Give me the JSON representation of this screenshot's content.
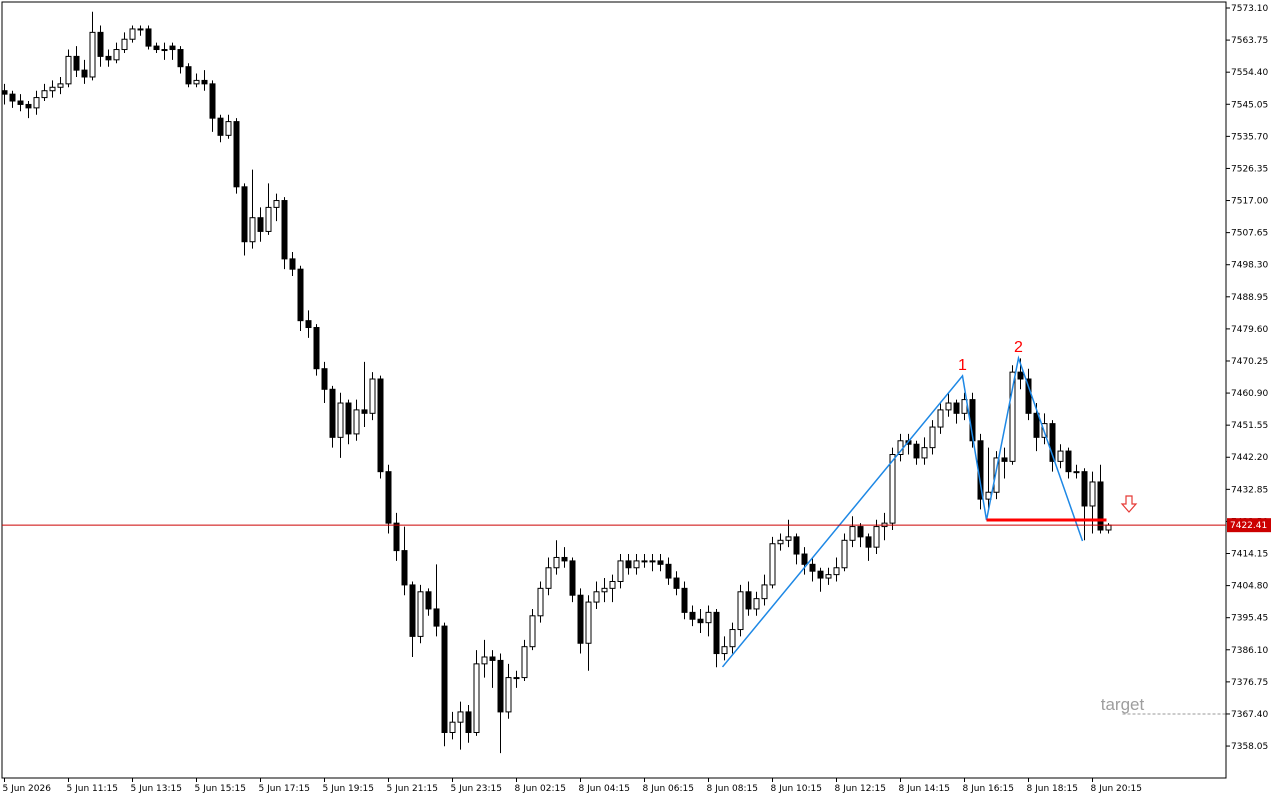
{
  "chart_data": {
    "type": "candlestick",
    "up_color": "#ffffff",
    "down_color": "#000000",
    "wick_color": "#000000",
    "categories": [
      "5 Jun 2026",
      null,
      null,
      null,
      null,
      null,
      null,
      null,
      "5 Jun 11:15",
      null,
      null,
      null,
      null,
      null,
      null,
      null,
      "5 Jun 13:15",
      null,
      null,
      null,
      null,
      null,
      null,
      null,
      "5 Jun 15:15",
      null,
      null,
      null,
      null,
      null,
      null,
      null,
      "5 Jun 17:15",
      null,
      null,
      null,
      null,
      null,
      null,
      null,
      "5 Jun 19:15",
      null,
      null,
      null,
      null,
      null,
      null,
      null,
      "5 Jun 21:15",
      null,
      null,
      null,
      null,
      null,
      null,
      null,
      "5 Jun 23:15",
      null,
      null,
      null,
      null,
      null,
      null,
      null,
      "8 Jun 02:15",
      null,
      null,
      null,
      null,
      null,
      null,
      null,
      "8 Jun 04:15",
      null,
      null,
      null,
      null,
      null,
      null,
      null,
      "8 Jun 06:15",
      null,
      null,
      null,
      null,
      null,
      null,
      null,
      "8 Jun 08:15",
      null,
      null,
      null,
      null,
      null,
      null,
      null,
      "8 Jun 10:15",
      null,
      null,
      null,
      null,
      null,
      null,
      null,
      "8 Jun 12:15",
      null,
      null,
      null,
      null,
      null,
      null,
      null,
      "8 Jun 14:15",
      null,
      null,
      null,
      null,
      null,
      null,
      null,
      "8 Jun 16:15",
      null,
      null,
      null,
      null,
      null,
      null,
      null,
      "8 Jun 18:15",
      null,
      null,
      null,
      null,
      null,
      null,
      null,
      "8 Jun 20:15",
      null,
      null
    ],
    "candles": [
      [
        7549,
        7551,
        7545,
        7548
      ],
      [
        7548,
        7549,
        7544,
        7546
      ],
      [
        7546,
        7548,
        7543,
        7545
      ],
      [
        7545,
        7546,
        7541,
        7544
      ],
      [
        7544,
        7549,
        7542,
        7547
      ],
      [
        7547,
        7551,
        7546,
        7549
      ],
      [
        7549,
        7552,
        7547,
        7550
      ],
      [
        7550,
        7553,
        7548,
        7551
      ],
      [
        7551,
        7561,
        7550,
        7559
      ],
      [
        7559,
        7562,
        7553,
        7555
      ],
      [
        7555,
        7558,
        7551,
        7553
      ],
      [
        7553,
        7572,
        7552,
        7566
      ],
      [
        7566,
        7568,
        7556,
        7559
      ],
      [
        7559,
        7561,
        7556,
        7558
      ],
      [
        7558,
        7563,
        7557,
        7561
      ],
      [
        7561,
        7566,
        7560,
        7564
      ],
      [
        7564,
        7568,
        7563,
        7567
      ],
      [
        7567,
        7568,
        7565,
        7567
      ],
      [
        7567,
        7568,
        7561,
        7562
      ],
      [
        7562,
        7563,
        7560,
        7561
      ],
      [
        7561,
        7563,
        7558,
        7561
      ],
      [
        7562,
        7563,
        7558,
        7561
      ],
      [
        7561,
        7562,
        7554,
        7556
      ],
      [
        7556,
        7557,
        7550,
        7551
      ],
      [
        7551,
        7554,
        7550,
        7552
      ],
      [
        7552,
        7555,
        7549,
        7551
      ],
      [
        7551,
        7552,
        7537,
        7541
      ],
      [
        7541,
        7542,
        7534,
        7536
      ],
      [
        7536,
        7542,
        7535,
        7540
      ],
      [
        7540,
        7541,
        7519,
        7521
      ],
      [
        7521,
        7522,
        7501,
        7505
      ],
      [
        7505,
        7526,
        7503,
        7512
      ],
      [
        7512,
        7515,
        7505,
        7508
      ],
      [
        7508,
        7522,
        7507,
        7515
      ],
      [
        7515,
        7519,
        7511,
        7517
      ],
      [
        7517,
        7518,
        7497,
        7500
      ],
      [
        7500,
        7502,
        7495,
        7497
      ],
      [
        7497,
        7498,
        7479,
        7482
      ],
      [
        7482,
        7485,
        7477,
        7480
      ],
      [
        7480,
        7481,
        7466,
        7468
      ],
      [
        7468,
        7470,
        7458,
        7462
      ],
      [
        7462,
        7463,
        7445,
        7448
      ],
      [
        7448,
        7461,
        7442,
        7458
      ],
      [
        7458,
        7459,
        7446,
        7449
      ],
      [
        7449,
        7459,
        7447,
        7456
      ],
      [
        7456,
        7470,
        7451,
        7455
      ],
      [
        7455,
        7467,
        7453,
        7465
      ],
      [
        7465,
        7466,
        7436,
        7438
      ],
      [
        7438,
        7440,
        7420,
        7423
      ],
      [
        7423,
        7426,
        7412,
        7415
      ],
      [
        7415,
        7422,
        7402,
        7405
      ],
      [
        7405,
        7406,
        7384,
        7390
      ],
      [
        7390,
        7405,
        7388,
        7403
      ],
      [
        7403,
        7404,
        7396,
        7398
      ],
      [
        7398,
        7411,
        7390,
        7393
      ],
      [
        7393,
        7394,
        7358,
        7362
      ],
      [
        7362,
        7368,
        7360,
        7365
      ],
      [
        7365,
        7371,
        7357,
        7368
      ],
      [
        7368,
        7370,
        7359,
        7362
      ],
      [
        7362,
        7386,
        7361,
        7382
      ],
      [
        7382,
        7389,
        7378,
        7384
      ],
      [
        7384,
        7386,
        7375,
        7383
      ],
      [
        7383,
        7385,
        7356,
        7368
      ],
      [
        7368,
        7382,
        7366,
        7378
      ],
      [
        7378,
        7380,
        7375,
        7378
      ],
      [
        7378,
        7389,
        7377,
        7387
      ],
      [
        7387,
        7398,
        7386,
        7396
      ],
      [
        7396,
        7406,
        7394,
        7404
      ],
      [
        7404,
        7413,
        7402,
        7410
      ],
      [
        7410,
        7418,
        7408,
        7413
      ],
      [
        7413,
        7416,
        7410,
        7412
      ],
      [
        7412,
        7413,
        7400,
        7402
      ],
      [
        7402,
        7404,
        7385,
        7388
      ],
      [
        7388,
        7402,
        7380,
        7400
      ],
      [
        7400,
        7406,
        7398,
        7403
      ],
      [
        7403,
        7407,
        7400,
        7404
      ],
      [
        7404,
        7408,
        7400,
        7406
      ],
      [
        7406,
        7414,
        7404,
        7412
      ],
      [
        7412,
        7414,
        7408,
        7410
      ],
      [
        7410,
        7414,
        7408,
        7412
      ],
      [
        7412,
        7414,
        7410,
        7412
      ],
      [
        7412,
        7414,
        7409,
        7412
      ],
      [
        7412,
        7414,
        7409,
        7411
      ],
      [
        7411,
        7413,
        7405,
        7407
      ],
      [
        7407,
        7409,
        7402,
        7404
      ],
      [
        7404,
        7406,
        7395,
        7397
      ],
      [
        7397,
        7399,
        7393,
        7395
      ],
      [
        7395,
        7398,
        7391,
        7394
      ],
      [
        7394,
        7399,
        7390,
        7397
      ],
      [
        7397,
        7398,
        7381,
        7385
      ],
      [
        7385,
        7390,
        7383,
        7387
      ],
      [
        7387,
        7394,
        7385,
        7392
      ],
      [
        7392,
        7405,
        7390,
        7403
      ],
      [
        7403,
        7406,
        7396,
        7398
      ],
      [
        7398,
        7403,
        7396,
        7401
      ],
      [
        7401,
        7408,
        7399,
        7405
      ],
      [
        7405,
        7419,
        7404,
        7417
      ],
      [
        7417,
        7420,
        7415,
        7418
      ],
      [
        7418,
        7424,
        7416,
        7419
      ],
      [
        7419,
        7420,
        7411,
        7414
      ],
      [
        7414,
        7416,
        7408,
        7411
      ],
      [
        7411,
        7413,
        7406,
        7409
      ],
      [
        7409,
        7410,
        7403,
        7407
      ],
      [
        7407,
        7410,
        7405,
        7408
      ],
      [
        7408,
        7413,
        7406,
        7410
      ],
      [
        7410,
        7420,
        7409,
        7418
      ],
      [
        7418,
        7425,
        7416,
        7422
      ],
      [
        7422,
        7423,
        7416,
        7419
      ],
      [
        7419,
        7420,
        7412,
        7416
      ],
      [
        7416,
        7424,
        7414,
        7422
      ],
      [
        7422,
        7426,
        7418,
        7423
      ],
      [
        7423,
        7445,
        7421,
        7443
      ],
      [
        7443,
        7449,
        7441,
        7447
      ],
      [
        7447,
        7449,
        7443,
        7446
      ],
      [
        7446,
        7447,
        7440,
        7442
      ],
      [
        7442,
        7448,
        7440,
        7445
      ],
      [
        7445,
        7453,
        7443,
        7451
      ],
      [
        7451,
        7458,
        7449,
        7456
      ],
      [
        7456,
        7461,
        7454,
        7458
      ],
      [
        7458,
        7459,
        7452,
        7455
      ],
      [
        7455,
        7461,
        7453,
        7459
      ],
      [
        7459,
        7461,
        7445,
        7447
      ],
      [
        7447,
        7449,
        7427,
        7430
      ],
      [
        7430,
        7445,
        7427,
        7432
      ],
      [
        7432,
        7444,
        7430,
        7442
      ],
      [
        7442,
        7445,
        7436,
        7441
      ],
      [
        7441,
        7469,
        7440,
        7467
      ],
      [
        7467,
        7471,
        7462,
        7465
      ],
      [
        7465,
        7468,
        7453,
        7455
      ],
      [
        7455,
        7458,
        7444,
        7448
      ],
      [
        7448,
        7455,
        7446,
        7452
      ],
      [
        7452,
        7453,
        7438,
        7441
      ],
      [
        7441,
        7446,
        7439,
        7444
      ],
      [
        7444,
        7445,
        7436,
        7438
      ],
      [
        7438,
        7440,
        7436,
        7438
      ],
      [
        7438,
        7439,
        7418,
        7428
      ],
      [
        7428,
        7438,
        7420,
        7435
      ],
      [
        7435,
        7440,
        7420,
        7421
      ],
      [
        7421,
        7423,
        7420,
        7422.41
      ]
    ],
    "ylim": [
      7348.74,
      7574.85
    ],
    "yticks": [
      {
        "value": 7573.1,
        "label": "7573.10"
      },
      7563.75,
      {
        "value": 7554.4,
        "label": "7554.40"
      },
      7545.05,
      {
        "value": 7535.7,
        "label": "7535.70"
      },
      7526.35,
      {
        "value": 7517,
        "label": "7517.00"
      },
      7507.65,
      {
        "value": 7498.3,
        "label": "7498.30"
      },
      7488.95,
      {
        "value": 7479.6,
        "label": "7479.60"
      },
      7470.25,
      {
        "value": 7460.9,
        "label": "7460.90"
      },
      7451.55,
      {
        "value": 7442.2,
        "label": "7442.20"
      },
      7432.85,
      {
        "value": 7423.5,
        "label": "7423.50"
      },
      7414.15,
      {
        "value": 7404.8,
        "label": "7404.80"
      },
      7395.45,
      {
        "value": 7386.1,
        "label": "7386.10"
      },
      7376.75,
      {
        "value": 7367.4,
        "label": "7367.40"
      },
      7358.05
    ],
    "current_price": 7422.41,
    "current_price_color": "#cc0000",
    "zigzag": {
      "x": [
        89.75,
        119.75,
        122.75,
        126.75,
        134.75
      ],
      "y": [
        7381.1,
        7465.9,
        7423.9,
        7471.1,
        7417.8
      ],
      "color": "#1e88e5"
    },
    "neckline": {
      "x": [
        122.75,
        137.75
      ],
      "y": 7423.9,
      "color": "#ff0000"
    },
    "peak_labels": [
      {
        "text": "1",
        "x": 119.75,
        "y": 7465.9
      },
      {
        "text": "2",
        "x": 126.75,
        "y": 7471.1
      }
    ],
    "target": {
      "text": "target",
      "x": 139.75,
      "y": 7367.4
    }
  }
}
